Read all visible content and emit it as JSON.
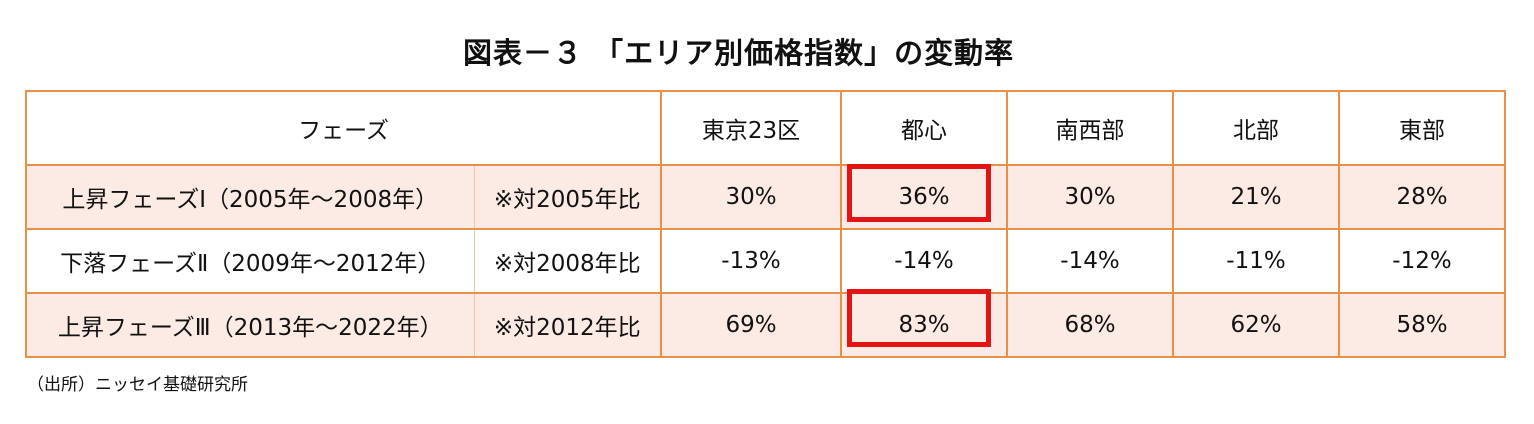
{
  "title": "図表－３ 「エリア別価格指数」の変動率",
  "table": {
    "header": {
      "phase": "フェーズ",
      "areas": [
        "東京23区",
        "都心",
        "南西部",
        "北部",
        "東部"
      ]
    },
    "rows": [
      {
        "phase": "上昇フェーズⅠ（2005年～2008年）",
        "basis": "※対2005年比",
        "values": [
          "30%",
          "36%",
          "30%",
          "21%",
          "28%"
        ],
        "shaded": true
      },
      {
        "phase": "下落フェーズⅡ（2009年～2012年）",
        "basis": "※対2008年比",
        "values": [
          "-13%",
          "-14%",
          "-14%",
          "-11%",
          "-12%"
        ],
        "shaded": false
      },
      {
        "phase": "上昇フェーズⅢ（2013年～2022年）",
        "basis": "※対2012年比",
        "values": [
          "69%",
          "83%",
          "68%",
          "62%",
          "58%"
        ],
        "shaded": true
      }
    ]
  },
  "highlight_color": "#e41414",
  "border_color": "#e8904a",
  "source": "（出所）ニッセイ基礎研究所"
}
